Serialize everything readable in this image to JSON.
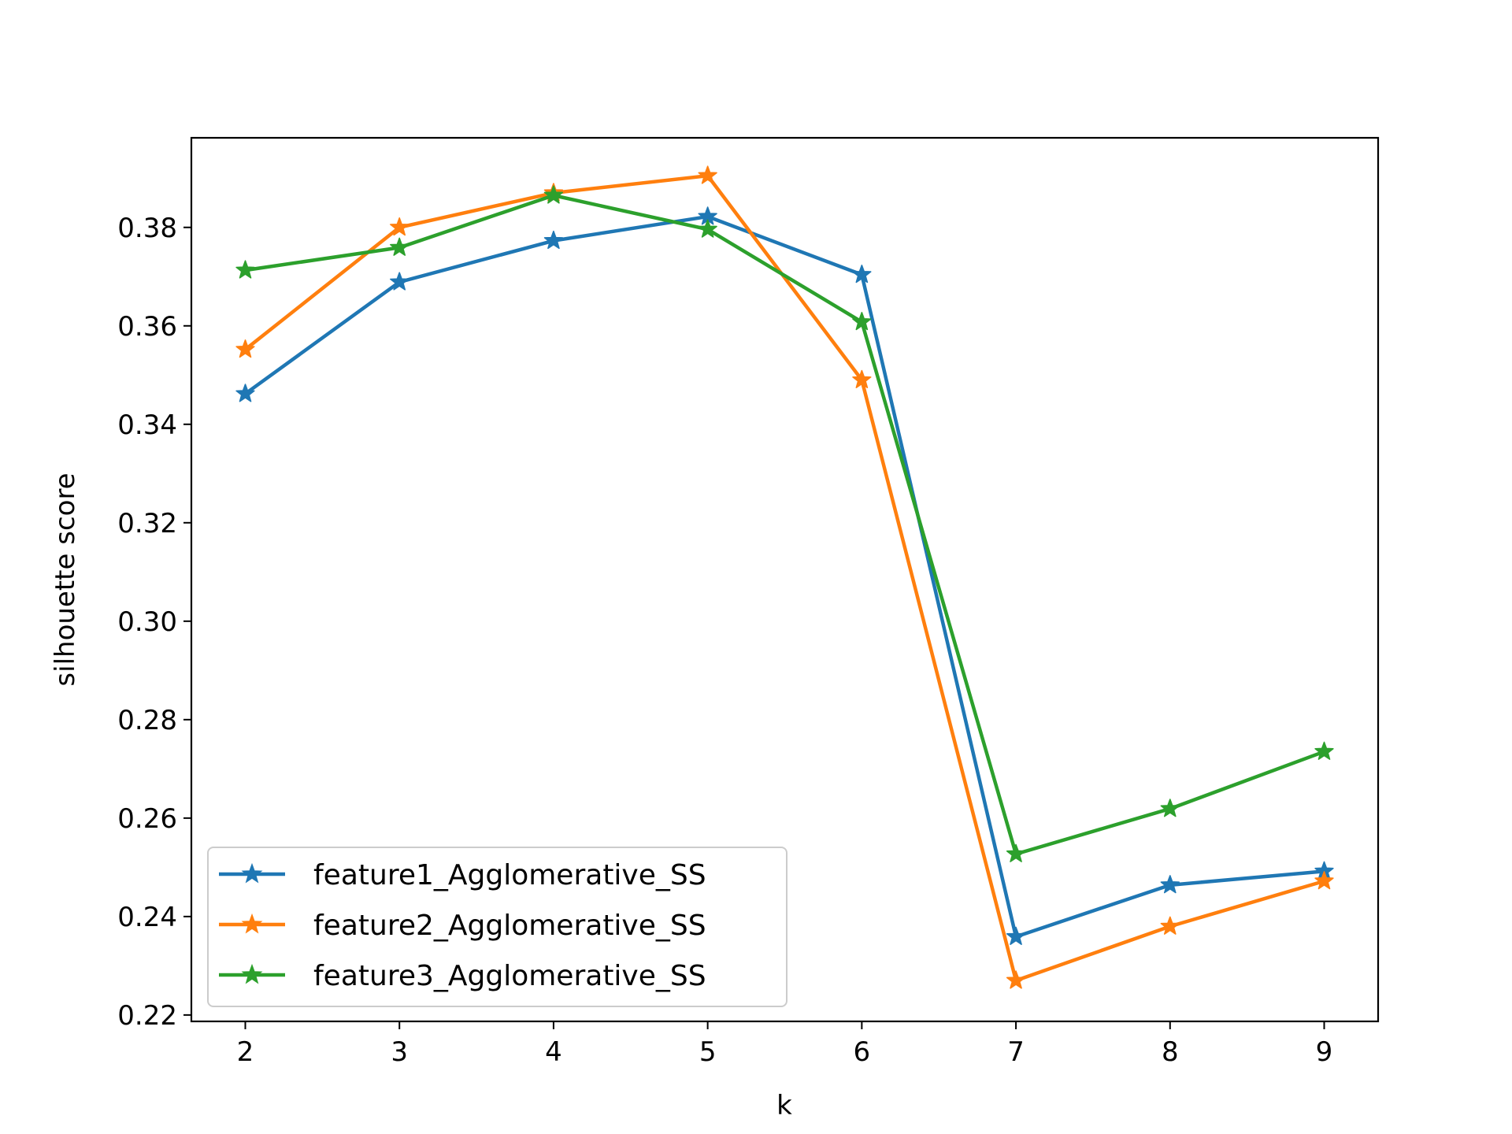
{
  "chart_data": {
    "type": "line",
    "title": "",
    "xlabel": "k",
    "ylabel": "silhouette score",
    "x": [
      2,
      3,
      4,
      5,
      6,
      7,
      8,
      9
    ],
    "xlim": [
      1.65,
      9.35
    ],
    "ylim": [
      0.2187,
      0.3982
    ],
    "xticks": [
      2,
      3,
      4,
      5,
      6,
      7,
      8,
      9
    ],
    "yticks": [
      0.22,
      0.24,
      0.26,
      0.28,
      0.3,
      0.32,
      0.34,
      0.36,
      0.38
    ],
    "ytick_labels": [
      "0.22",
      "0.24",
      "0.26",
      "0.28",
      "0.30",
      "0.32",
      "0.34",
      "0.36",
      "0.38"
    ],
    "xtick_labels": [
      "2",
      "3",
      "4",
      "5",
      "6",
      "7",
      "8",
      "9"
    ],
    "grid": false,
    "legend": "lower-left",
    "marker": "star",
    "series": [
      {
        "name": "feature1_Agglomerative_SS",
        "color": "#1f77b4",
        "values": [
          0.3462,
          0.3689,
          0.3773,
          0.3822,
          0.3704,
          0.2359,
          0.2464,
          0.2492
        ]
      },
      {
        "name": "feature2_Agglomerative_SS",
        "color": "#ff7f0e",
        "values": [
          0.3552,
          0.38,
          0.387,
          0.3905,
          0.349,
          0.227,
          0.238,
          0.2472
        ]
      },
      {
        "name": "feature3_Agglomerative_SS",
        "color": "#2ca02c",
        "values": [
          0.3713,
          0.3759,
          0.3865,
          0.3796,
          0.3608,
          0.2527,
          0.2619,
          0.2735
        ]
      }
    ]
  }
}
